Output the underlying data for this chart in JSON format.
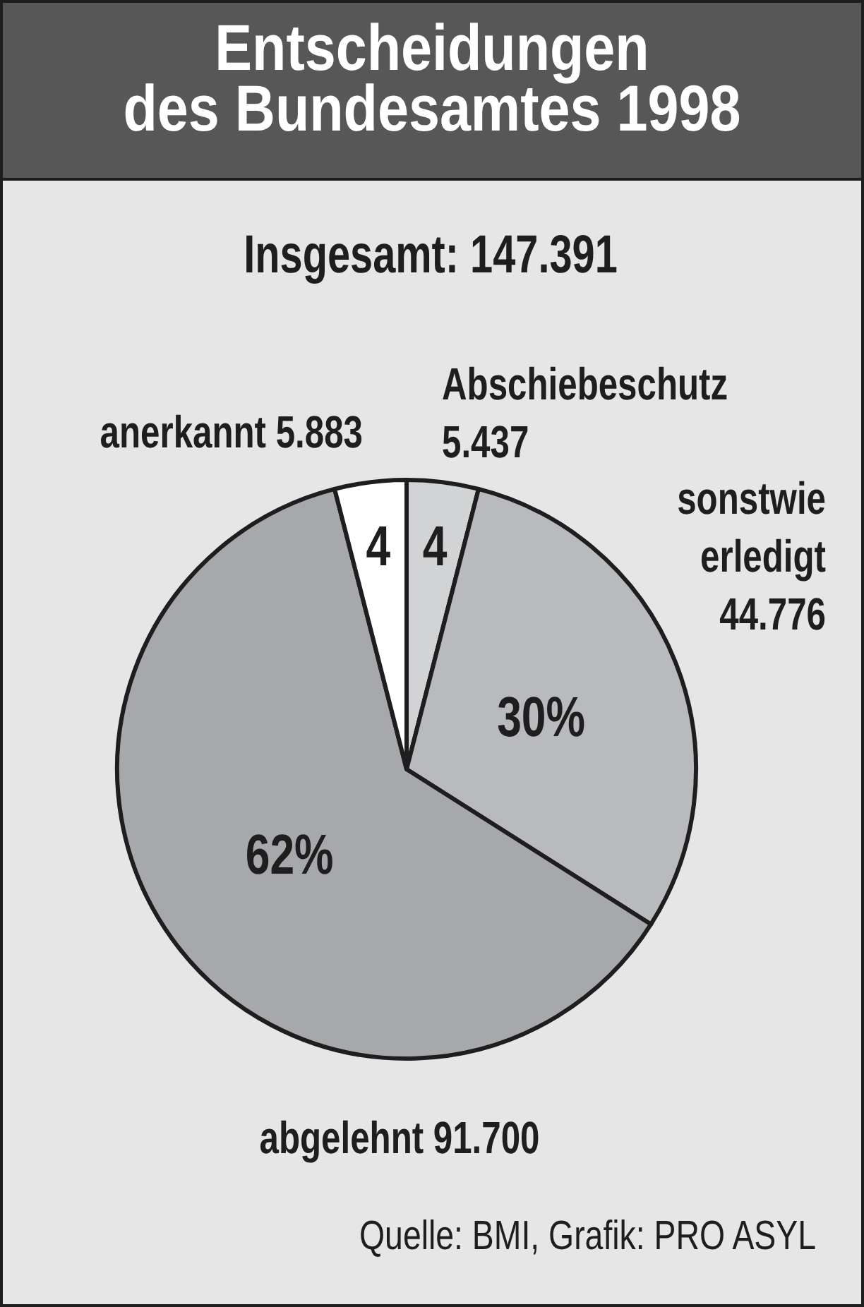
{
  "chart_data": {
    "type": "pie",
    "title": "Entscheidungen des Bundesamtes 1998",
    "subtitle": "Insgesamt: 147.391",
    "categories": [
      "Abschiebeschutz 5.437",
      "sonstwie erledigt 44.776",
      "abgelehnt 91.700",
      "anerkannt 5.883"
    ],
    "values": [
      4,
      30,
      62,
      4
    ],
    "colors": [
      "#d1d3d5",
      "#b8babd",
      "#a6a8ab",
      "#ffffff"
    ],
    "value_labels": [
      "4",
      "30%",
      "62%",
      "4"
    ],
    "annotations": [
      "Quelle: BMI, Grafik: PRO ASYL"
    ]
  }
}
